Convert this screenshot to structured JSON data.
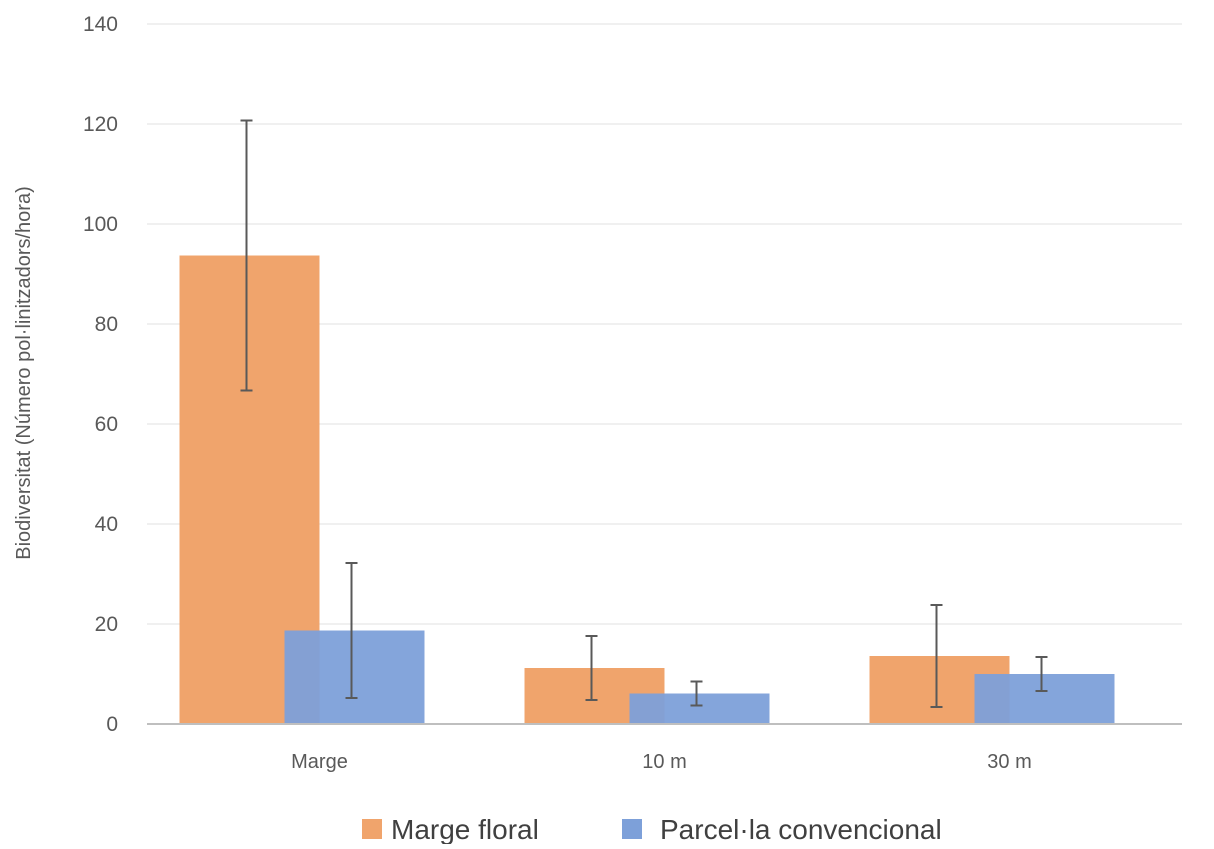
{
  "chart_data": {
    "type": "bar",
    "title": "",
    "xlabel": "",
    "ylabel": "Biodiversitat (Número pol·linitzadors/hora)",
    "categories": [
      "Marge",
      "10 m",
      "30 m"
    ],
    "series": [
      {
        "name": "Marge floral",
        "color": "#F0A46C",
        "values": [
          93.7,
          11.2,
          13.6
        ],
        "error": [
          27.0,
          6.4,
          10.2
        ]
      },
      {
        "name": "Parcel·la convencional",
        "color": "#7DA0D9",
        "values": [
          18.7,
          6.1,
          10.0
        ],
        "error": [
          13.5,
          2.4,
          3.4
        ]
      }
    ],
    "ylim": [
      0,
      140
    ],
    "yticks": [
      0,
      20,
      40,
      60,
      80,
      100,
      120,
      140
    ],
    "grid": true,
    "legend_position": "bottom"
  }
}
